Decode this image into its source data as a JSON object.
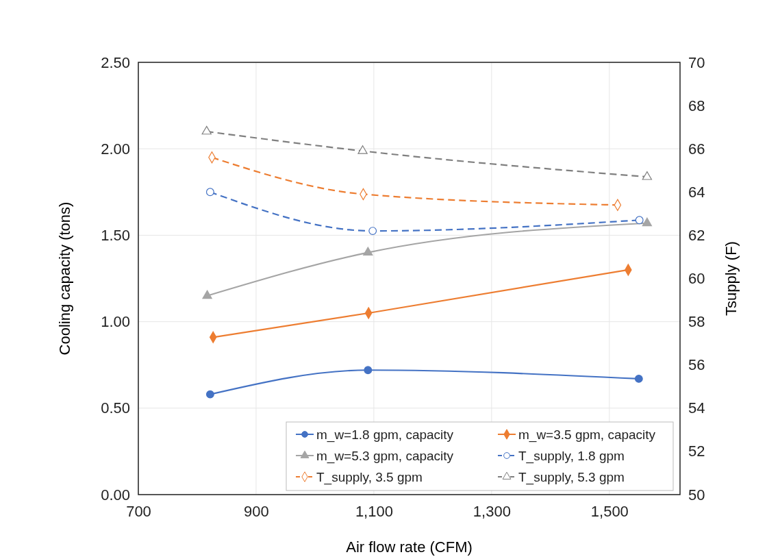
{
  "chart_data": {
    "type": "line",
    "xlabel": "Air flow rate (CFM)",
    "ylabel": "Cooling capacity (tons)",
    "y2label": "Tsupply (F)",
    "xlim": [
      700,
      1620
    ],
    "xticks": [
      700,
      900,
      {
        "value": 1100,
        "label": "1,100"
      },
      {
        "value": 1300,
        "label": "1,300"
      },
      {
        "value": 1500,
        "label": "1,500"
      }
    ],
    "ylim": [
      0,
      2.5
    ],
    "yticks": [
      {
        "value": 0,
        "label": "0.00"
      },
      {
        "value": 0.5,
        "label": "0.50"
      },
      {
        "value": 1,
        "label": "1.00"
      },
      {
        "value": 1.5,
        "label": "1.50"
      },
      {
        "value": 2,
        "label": "2.00"
      },
      {
        "value": 2.5,
        "label": "2.50"
      }
    ],
    "y2lim": [
      50,
      70
    ],
    "y2ticks": [
      50,
      52,
      54,
      56,
      58,
      60,
      62,
      64,
      66,
      68,
      70
    ],
    "grid": true,
    "legend": "bottom right",
    "series": [
      {
        "name": "m_w=1.8 gpm, capacity",
        "color": "#4472c4",
        "marker": "circle",
        "line_style": "solid",
        "x": [
          822,
          1090,
          1550
        ],
        "values": [
          0.58,
          0.72,
          0.67
        ]
      },
      {
        "name": "m_w=3.5 gpm, capacity",
        "color": "#ed7d31",
        "marker": "diamond",
        "line_style": "solid",
        "x": [
          827,
          1091,
          1532
        ],
        "values": [
          0.91,
          1.05,
          1.3
        ]
      },
      {
        "name": "m_w=5.3 gpm, capacity",
        "color": "#a5a5a5",
        "marker": "triangle",
        "line_style": "solid",
        "x": [
          817,
          1090,
          1564
        ],
        "values": [
          1.15,
          1.4,
          1.57
        ]
      },
      {
        "name": "T_supply, 1.8 gpm",
        "color": "#4472c4",
        "marker": "circle",
        "line_style": "dashed",
        "axis": "y2",
        "x": [
          822,
          1098,
          1551
        ],
        "values": [
          64.0,
          62.2,
          62.7
        ]
      },
      {
        "name": "T_supply, 3.5 gpm",
        "color": "#ed7d31",
        "marker": "diamond",
        "line_style": "dashed",
        "axis": "y2",
        "x": [
          825,
          1082,
          1514
        ],
        "values": [
          65.6,
          63.9,
          63.4
        ]
      },
      {
        "name": "T_supply, 5.3 gpm",
        "color": "#7f7f7f",
        "marker": "triangle",
        "line_style": "dashed",
        "axis": "y2",
        "x": [
          816,
          1081,
          1564
        ],
        "values": [
          66.8,
          65.9,
          64.7
        ]
      }
    ]
  }
}
